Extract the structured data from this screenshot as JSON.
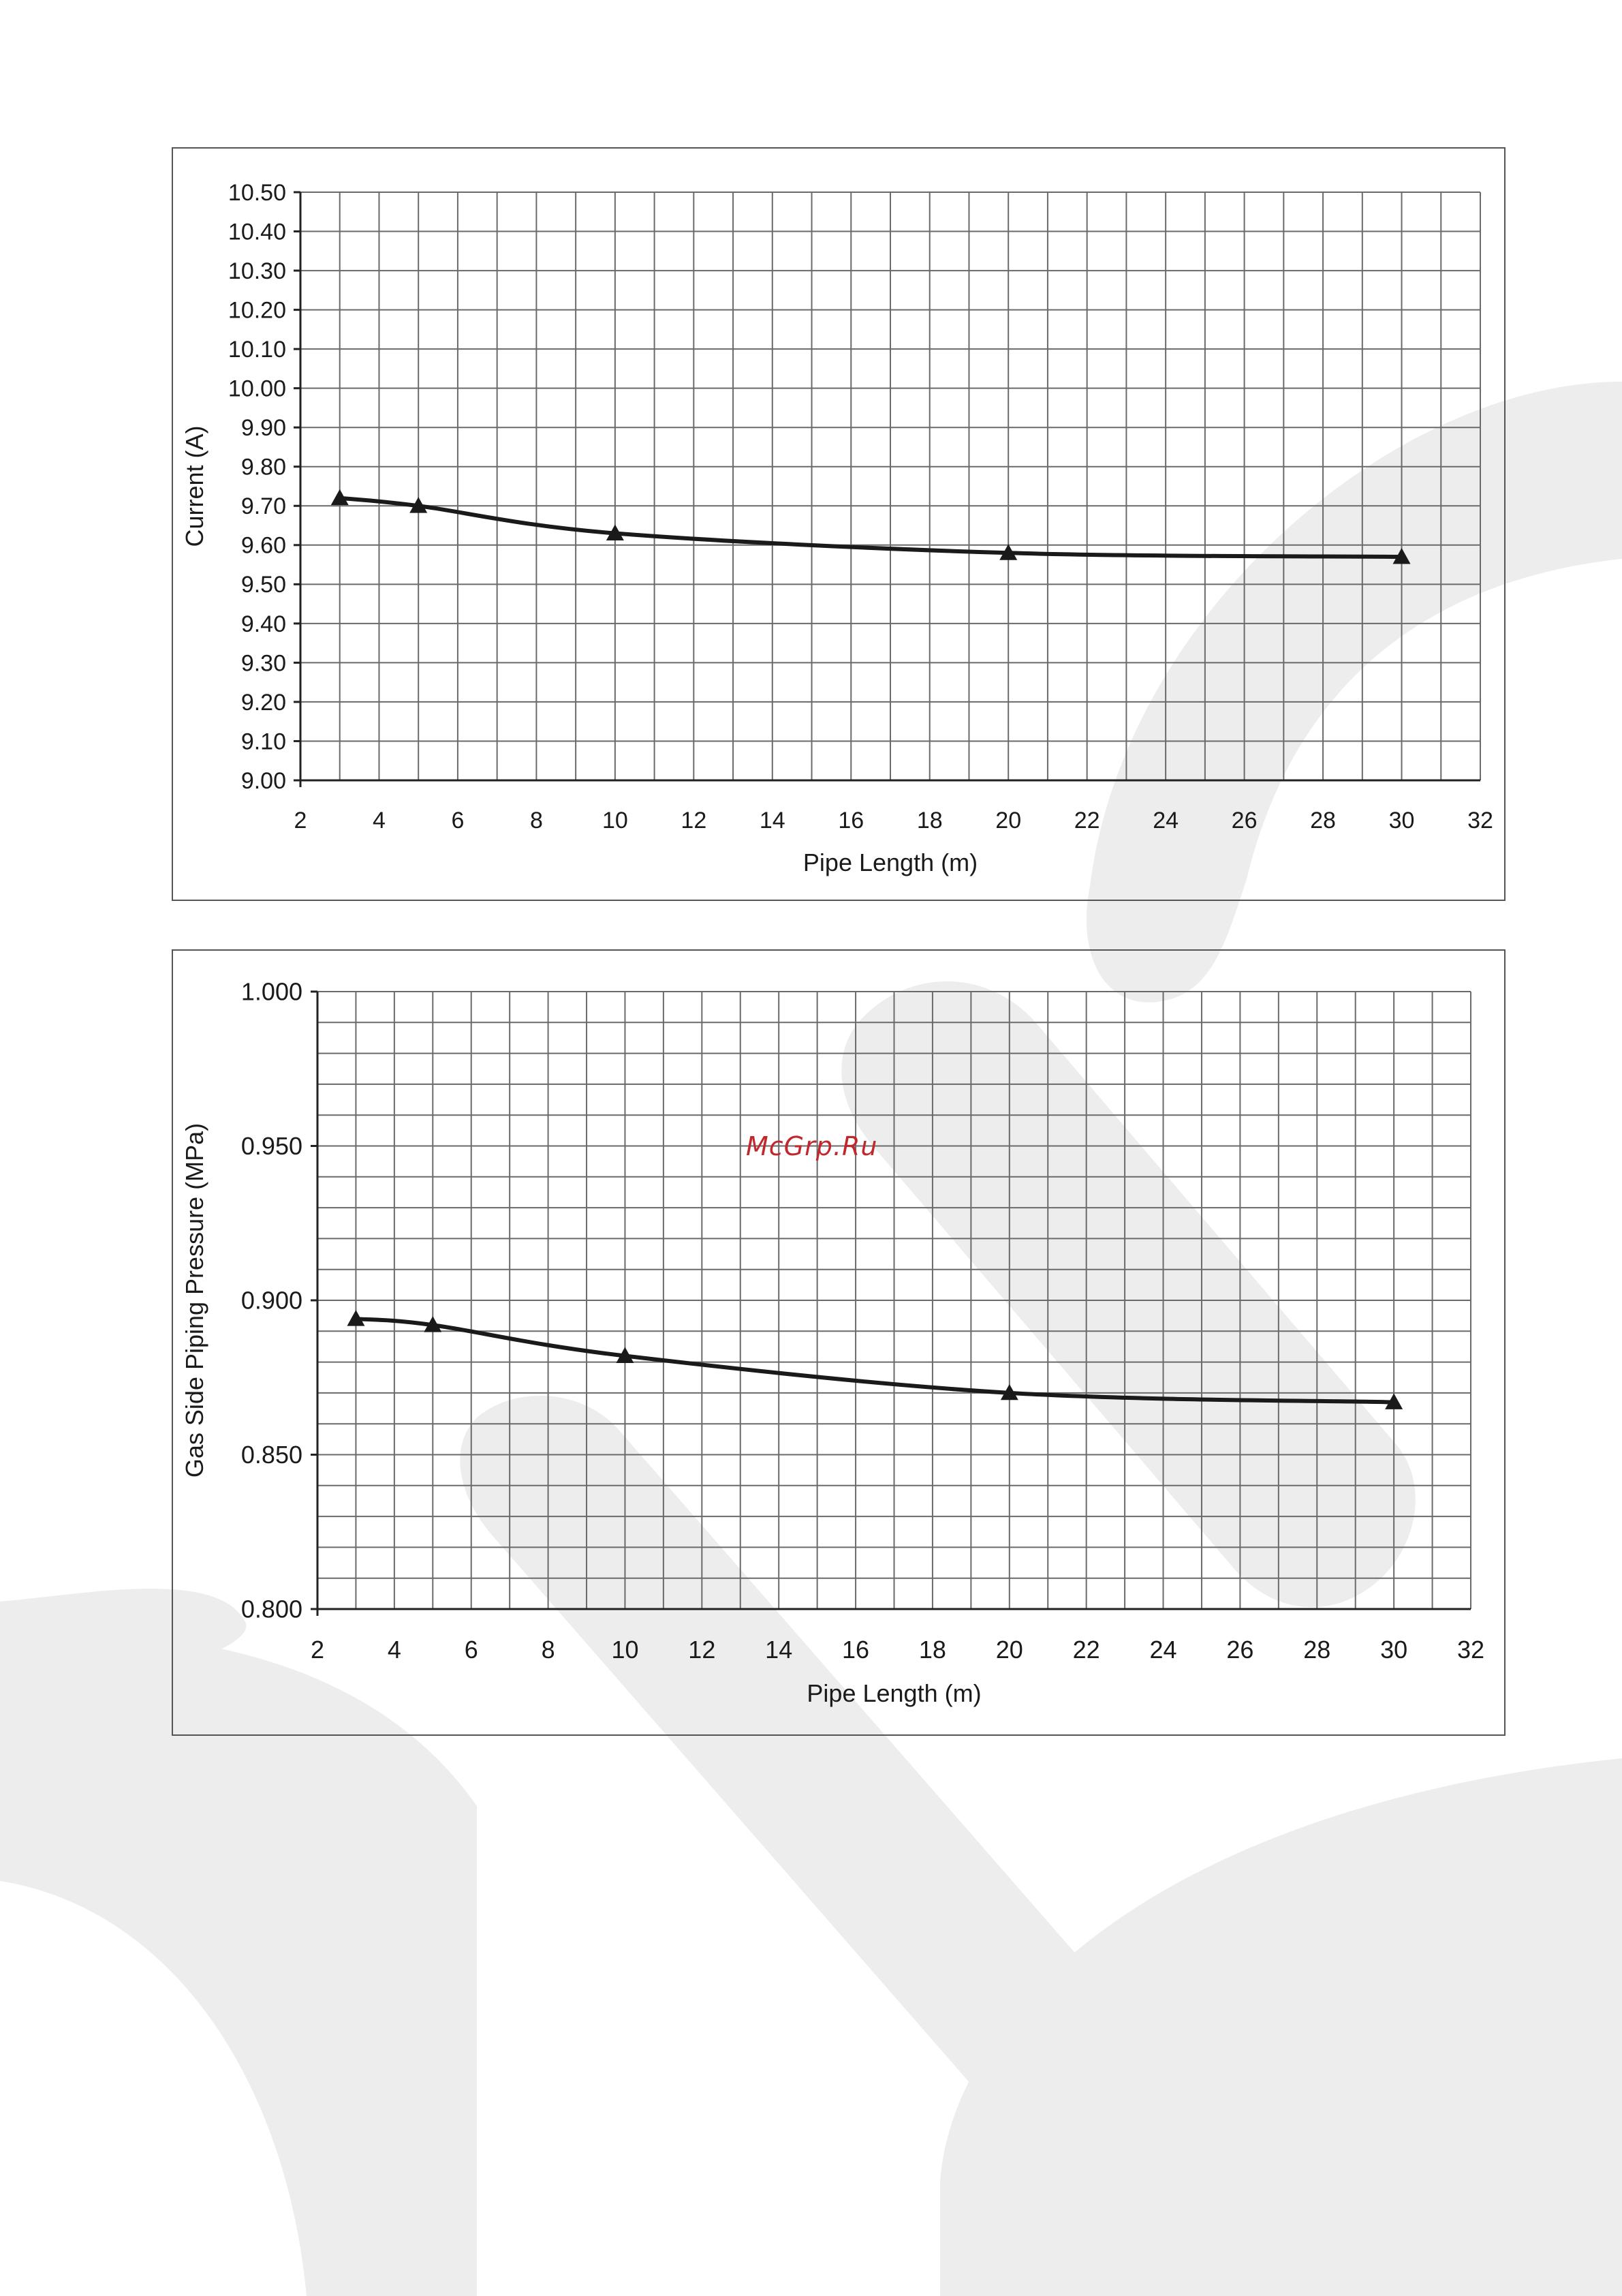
{
  "watermark": {
    "text": "McGrp.Ru",
    "color": "#c0282d"
  },
  "colors": {
    "line": "#1a1a1a",
    "grid": "#6a6a6a",
    "frame": "#555555",
    "background_shape": "#ececec"
  },
  "chart_data": [
    {
      "type": "line",
      "title": "",
      "xlabel": "Pipe Length (m)",
      "ylabel": "Current (A)",
      "xlim": [
        2,
        32
      ],
      "ylim": [
        9.0,
        10.5
      ],
      "x_ticks": [
        2,
        4,
        6,
        8,
        10,
        12,
        14,
        16,
        18,
        20,
        22,
        24,
        26,
        28,
        30,
        32
      ],
      "y_ticks": [
        "9.00",
        "9.10",
        "9.20",
        "9.30",
        "9.40",
        "9.50",
        "9.60",
        "9.70",
        "9.80",
        "9.90",
        "10.00",
        "10.10",
        "10.20",
        "10.30",
        "10.40",
        "10.50"
      ],
      "grid": true,
      "series": [
        {
          "marker": "triangle",
          "x": [
            3,
            5,
            10,
            20,
            30
          ],
          "y": [
            9.72,
            9.7,
            9.63,
            9.58,
            9.57
          ]
        }
      ]
    },
    {
      "type": "line",
      "title": "",
      "xlabel": "Pipe Length (m)",
      "ylabel": "Gas Side Piping Pressure (MPa)",
      "xlim": [
        2,
        32
      ],
      "ylim": [
        0.8,
        1.0
      ],
      "x_ticks": [
        2,
        4,
        6,
        8,
        10,
        12,
        14,
        16,
        18,
        20,
        22,
        24,
        26,
        28,
        30,
        32
      ],
      "y_ticks": [
        "0.800",
        "0.850",
        "0.900",
        "0.950",
        "1.000"
      ],
      "grid": true,
      "series": [
        {
          "marker": "triangle",
          "x": [
            3,
            5,
            10,
            20,
            30
          ],
          "y": [
            0.894,
            0.892,
            0.882,
            0.87,
            0.867
          ]
        }
      ]
    }
  ]
}
